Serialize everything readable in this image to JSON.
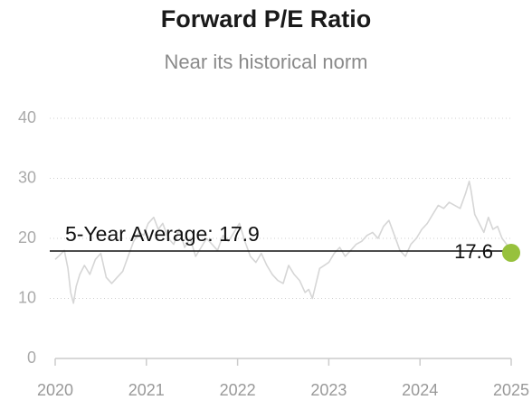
{
  "chart_data": {
    "type": "line",
    "title": "Forward P/E Ratio",
    "subtitle": "Near its historical norm",
    "xlabel": "",
    "ylabel": "",
    "ylim": [
      0,
      40
    ],
    "yticks": [
      0,
      10,
      20,
      30,
      40
    ],
    "xlim": [
      2020,
      2025
    ],
    "xticks": [
      "2020",
      "2021",
      "2022",
      "2023",
      "2024",
      "2025"
    ],
    "grid": true,
    "reference_line": {
      "label": "5-Year Average: 17.9",
      "value": 17.9
    },
    "last_value": {
      "label": "17.6",
      "x": 2025.0,
      "y": 17.6
    },
    "series": [
      {
        "x": [
          2020.0,
          2020.05,
          2020.1,
          2020.14,
          2020.17,
          2020.2,
          2020.23,
          2020.27,
          2020.32,
          2020.38,
          2020.44,
          2020.5,
          2020.56,
          2020.62,
          2020.68,
          2020.74,
          2020.8,
          2020.86,
          2020.92,
          2020.97,
          2021.02,
          2021.08,
          2021.13,
          2021.18,
          2021.24,
          2021.3,
          2021.36,
          2021.42,
          2021.48,
          2021.54,
          2021.6,
          2021.66,
          2021.72,
          2021.78,
          2021.84,
          2021.9,
          2021.96,
          2022.02,
          2022.08,
          2022.14,
          2022.2,
          2022.26,
          2022.32,
          2022.38,
          2022.44,
          2022.5,
          2022.56,
          2022.62,
          2022.68,
          2022.74,
          2022.78,
          2022.82,
          2022.86,
          2022.9,
          2022.95,
          2023.0,
          2023.06,
          2023.12,
          2023.18,
          2023.24,
          2023.3,
          2023.36,
          2023.42,
          2023.48,
          2023.54,
          2023.6,
          2023.66,
          2023.72,
          2023.78,
          2023.84,
          2023.9,
          2023.96,
          2024.02,
          2024.08,
          2024.14,
          2024.2,
          2024.26,
          2024.32,
          2024.38,
          2024.44,
          2024.5,
          2024.54,
          2024.56,
          2024.6,
          2024.65,
          2024.7,
          2024.75,
          2024.8,
          2024.85,
          2024.9,
          2024.95,
          2025.0
        ],
        "values": [
          16.5,
          17.2,
          18.0,
          15.0,
          11.0,
          9.2,
          12.0,
          14.0,
          15.5,
          14.0,
          16.5,
          17.5,
          13.5,
          12.5,
          13.5,
          14.5,
          17.0,
          19.5,
          21.0,
          20.5,
          22.5,
          23.5,
          21.5,
          22.5,
          20.0,
          19.0,
          21.5,
          18.5,
          20.0,
          17.0,
          18.5,
          20.0,
          19.0,
          18.0,
          20.5,
          19.5,
          21.0,
          22.5,
          19.5,
          17.0,
          16.0,
          17.5,
          15.5,
          14.0,
          13.0,
          12.5,
          15.5,
          14.0,
          13.0,
          11.0,
          11.5,
          10.0,
          12.5,
          15.0,
          15.5,
          16.0,
          17.5,
          18.5,
          17.0,
          18.0,
          19.0,
          19.5,
          20.5,
          21.0,
          20.0,
          22.0,
          23.0,
          20.5,
          18.0,
          17.0,
          19.0,
          20.0,
          21.5,
          22.5,
          24.0,
          25.5,
          25.0,
          26.0,
          25.5,
          25.0,
          27.5,
          29.5,
          28.0,
          24.0,
          22.5,
          21.0,
          23.5,
          21.5,
          22.0,
          20.0,
          19.0,
          17.6
        ]
      }
    ]
  }
}
